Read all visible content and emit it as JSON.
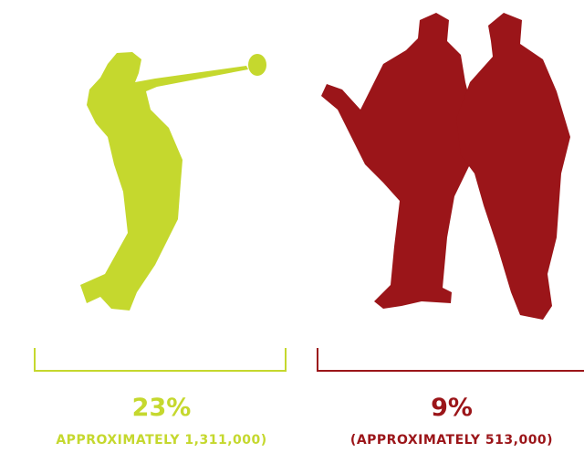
{
  "panels": [
    {
      "percent": "23%",
      "detail": "APPROXIMATELY 1,311,000)",
      "color": "#c5d82e"
    },
    {
      "percent": "9%",
      "detail": "(APPROXIMATELY 513,000)",
      "color": "#9b1519"
    }
  ]
}
